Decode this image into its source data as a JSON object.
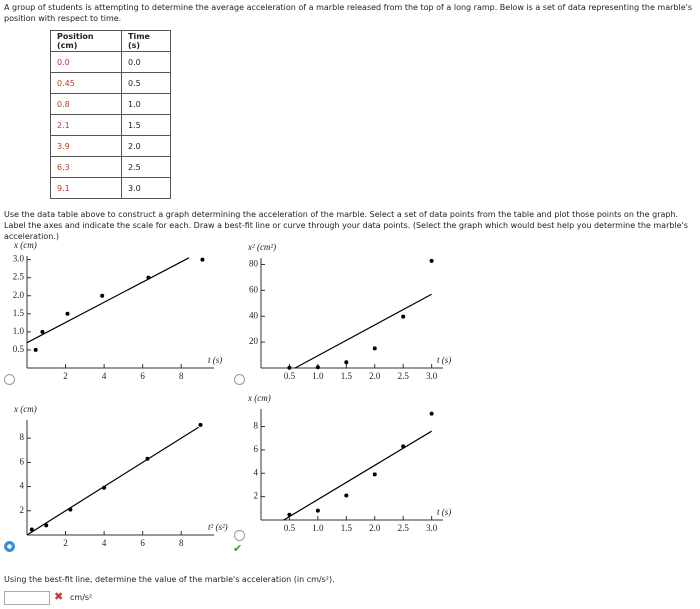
{
  "intro": "A group of students is attempting to determine the average acceleration of a marble released from the top of a long ramp. Below is a set of data representing the marble's position with respect to time.",
  "table": {
    "headers": [
      "Position (cm)",
      "Time (s)"
    ],
    "rows": [
      [
        "0.0",
        "0.0"
      ],
      [
        "0.45",
        "0.5"
      ],
      [
        "0.8",
        "1.0"
      ],
      [
        "2.1",
        "1.5"
      ],
      [
        "3.9",
        "2.0"
      ],
      [
        "6.3",
        "2.5"
      ],
      [
        "9.1",
        "3.0"
      ]
    ]
  },
  "instructions": "Use the data table above to construct a graph determining the acceleration of the marble. Select a set of data points from the table and plot those points on the graph. Label the axes and indicate the scale for each. Draw a best-fit line or curve through your data points. (Select the graph which would best help you determine the marble's acceleration.)",
  "chart_data": [
    {
      "type": "scatter",
      "x_label": "t (s)",
      "y_label": "x (cm)",
      "x": [
        0.45,
        0.8,
        2.1,
        3.9,
        6.3,
        9.1
      ],
      "y": [
        0.5,
        1.0,
        1.5,
        2.0,
        2.5,
        3.0
      ],
      "fit": {
        "x": [
          0,
          8.4
        ],
        "y": [
          0.7,
          3.05
        ]
      },
      "xlim": [
        0,
        9.7
      ],
      "ylim": [
        0,
        3.1
      ],
      "xticks": [
        2,
        4,
        6,
        8
      ],
      "yticks": [
        {
          "value": 0.5,
          "label": "0.5"
        },
        {
          "value": 1,
          "label": "1.0"
        },
        {
          "value": 1.5,
          "label": "1.5"
        },
        {
          "value": 2,
          "label": "2.0"
        },
        {
          "value": 2.5,
          "label": "2.5"
        },
        {
          "value": 3,
          "label": "3.0"
        }
      ],
      "color": "#000000",
      "grid": false
    },
    {
      "type": "scatter",
      "x_label": "t (s)",
      "y_label": "x² (cm²)",
      "x": [
        0.5,
        1.0,
        1.5,
        2.0,
        2.5,
        3.0
      ],
      "y": [
        0.2,
        0.6,
        4.4,
        15.2,
        39.7,
        82.8
      ],
      "fit": {
        "x": [
          0.6,
          3.0
        ],
        "y": [
          0,
          57
        ]
      },
      "xlim": [
        0,
        3.2
      ],
      "ylim": [
        0,
        85
      ],
      "xticks": [
        0.5,
        {
          "value": 1,
          "label": "1.0"
        },
        1.5,
        {
          "value": 2,
          "label": "2.0"
        },
        2.5,
        {
          "value": 3,
          "label": "3.0"
        }
      ],
      "yticks": [
        20,
        40,
        60,
        80
      ],
      "color": "#000000",
      "grid": false
    },
    {
      "type": "scatter",
      "x_label": "t² (s²)",
      "y_label": "x (cm)",
      "x": [
        0.25,
        1.0,
        2.25,
        4.0,
        6.25,
        9.0
      ],
      "y": [
        0.45,
        0.8,
        2.1,
        3.9,
        6.3,
        9.1
      ],
      "fit": {
        "x": [
          0,
          8.9
        ],
        "y": [
          0,
          8.9
        ]
      },
      "xlim": [
        0,
        9.7
      ],
      "ylim": [
        0,
        9.5
      ],
      "xticks": [
        2,
        4,
        6,
        8
      ],
      "yticks": [
        2,
        4,
        6,
        8
      ],
      "color": "#000000",
      "grid": false
    },
    {
      "type": "scatter",
      "x_label": "t (s)",
      "y_label": "x (cm)",
      "x": [
        0.5,
        1.0,
        1.5,
        2.0,
        2.5,
        3.0
      ],
      "y": [
        0.45,
        0.8,
        2.1,
        3.9,
        6.3,
        9.1
      ],
      "fit": {
        "x": [
          0.4,
          3.0
        ],
        "y": [
          0,
          7.6
        ]
      },
      "xlim": [
        0,
        3.2
      ],
      "ylim": [
        0,
        9.5
      ],
      "xticks": [
        0.5,
        {
          "value": 1,
          "label": "1.0"
        },
        1.5,
        {
          "value": 2,
          "label": "2.0"
        },
        2.5,
        {
          "value": 3,
          "label": "3.0"
        }
      ],
      "yticks": [
        2,
        4,
        6,
        8
      ],
      "color": "#000000",
      "grid": false
    }
  ],
  "question": "Using the best-fit line, determine the value of the marble's acceleration (in cm/s²).",
  "unit": "cm/s²"
}
